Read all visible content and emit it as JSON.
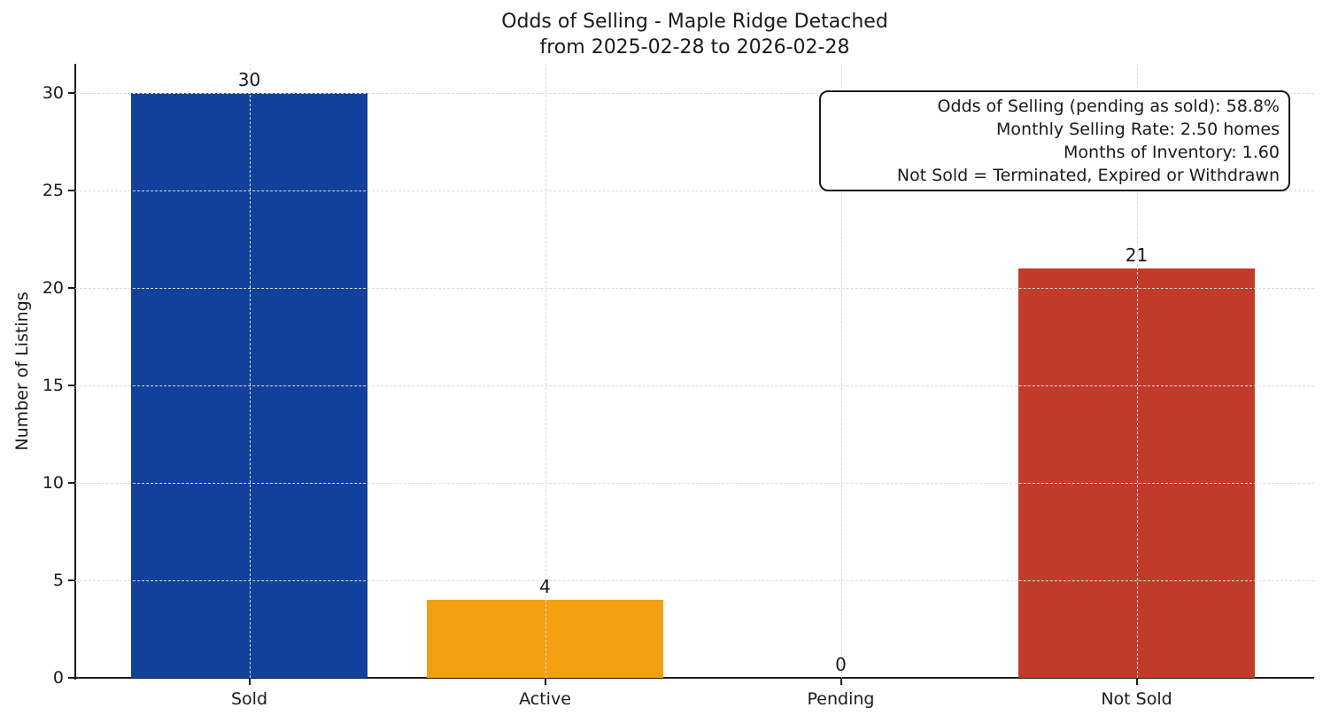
{
  "chart": {
    "title_line1": "Odds of Selling - Maple Ridge Detached",
    "title_line2": "from 2025-02-28 to 2026-02-28"
  },
  "chart_data": {
    "type": "bar",
    "title": "Odds of Selling - Maple Ridge Detached",
    "subtitle": "from 2025-02-28 to 2026-02-28",
    "categories": [
      "Sold",
      "Active",
      "Pending",
      "Not Sold"
    ],
    "values": [
      30,
      4,
      0,
      21
    ],
    "bar_colors": [
      "#11419a",
      "#f2a012",
      null,
      "#c23b2a"
    ],
    "xlabel": "",
    "ylabel": "Number of Listings",
    "yticks": [
      0,
      5,
      10,
      15,
      20,
      25,
      30
    ],
    "ylim": [
      0,
      31.5
    ],
    "grid": "dashed, light gray, horizontal and vertical",
    "legend": "none",
    "annotations": [
      "Odds of Selling (pending as sold): 58.8%",
      "Monthly Selling Rate: 2.50 homes",
      "Months of Inventory: 1.60",
      "Not Sold = Terminated, Expired or Withdrawn"
    ]
  }
}
